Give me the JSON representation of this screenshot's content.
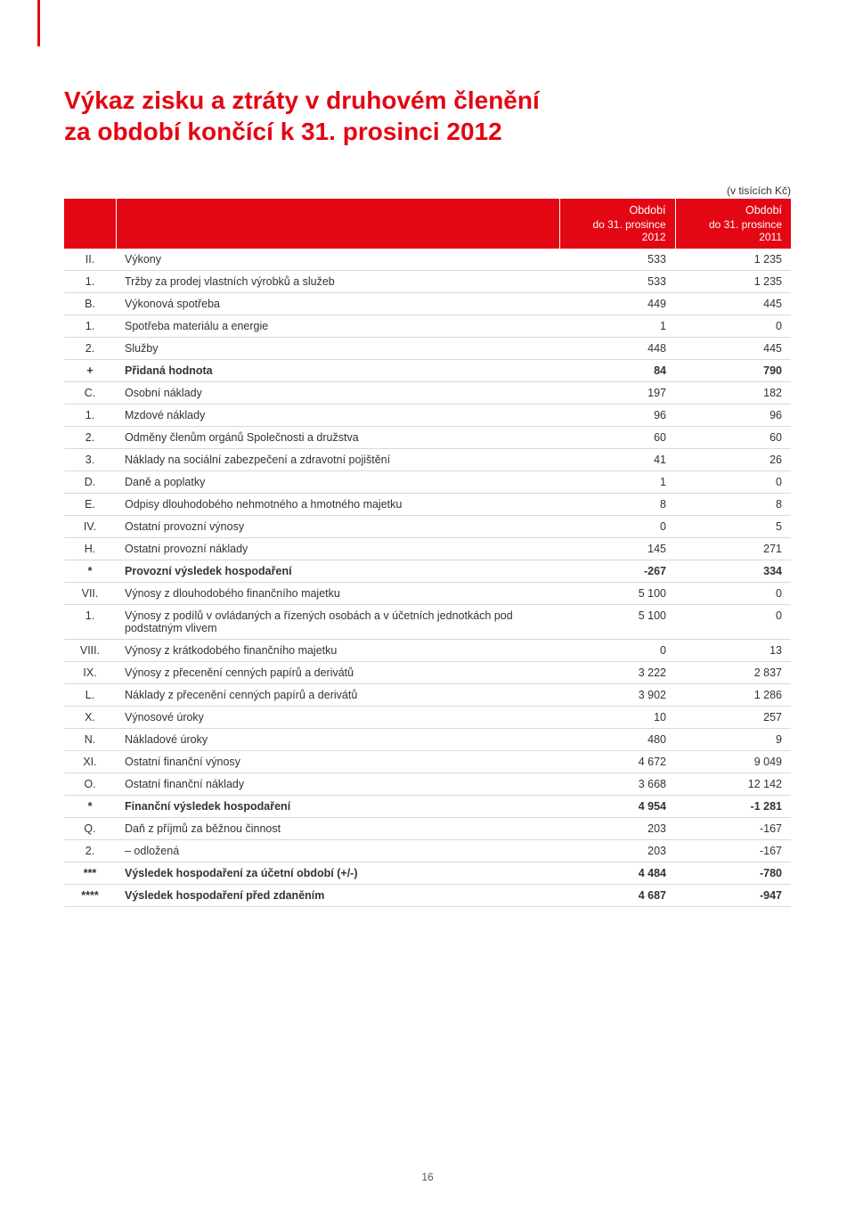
{
  "title_line1": "Výkaz zisku a ztráty v druhovém členění",
  "title_line2": "za období končící k 31. prosinci 2012",
  "unit_note": "(v tisících Kč)",
  "header": {
    "col1_row1": "Období",
    "col2_row1": "Období",
    "col1_row2": "do 31. prosince 2012",
    "col2_row2": "do 31. prosince 2011"
  },
  "rows": [
    {
      "code": "II.",
      "label": "Výkony",
      "v2012": "533",
      "v2011": "1 235",
      "bold": false
    },
    {
      "code": "1.",
      "label": "Tržby za prodej vlastních výrobků a služeb",
      "v2012": "533",
      "v2011": "1 235",
      "bold": false
    },
    {
      "code": "B.",
      "label": "Výkonová spotřeba",
      "v2012": "449",
      "v2011": "445",
      "bold": false
    },
    {
      "code": "1.",
      "label": "Spotřeba materiálu a energie",
      "v2012": "1",
      "v2011": "0",
      "bold": false
    },
    {
      "code": "2.",
      "label": "Služby",
      "v2012": "448",
      "v2011": "445",
      "bold": false
    },
    {
      "code": "+",
      "label": "Přidaná hodnota",
      "v2012": "84",
      "v2011": "790",
      "bold": true
    },
    {
      "code": "C.",
      "label": "Osobní náklady",
      "v2012": "197",
      "v2011": "182",
      "bold": false
    },
    {
      "code": "1.",
      "label": "Mzdové náklady",
      "v2012": "96",
      "v2011": "96",
      "bold": false
    },
    {
      "code": "2.",
      "label": "Odměny členům orgánů Společnosti a družstva",
      "v2012": "60",
      "v2011": "60",
      "bold": false
    },
    {
      "code": "3.",
      "label": "Náklady na sociální zabezpečení a zdravotní pojištění",
      "v2012": "41",
      "v2011": "26",
      "bold": false
    },
    {
      "code": "D.",
      "label": "Daně a poplatky",
      "v2012": "1",
      "v2011": "0",
      "bold": false
    },
    {
      "code": "E.",
      "label": "Odpisy dlouhodobého nehmotného a hmotného majetku",
      "v2012": "8",
      "v2011": "8",
      "bold": false
    },
    {
      "code": "IV.",
      "label": "Ostatní provozní výnosy",
      "v2012": "0",
      "v2011": "5",
      "bold": false
    },
    {
      "code": "H.",
      "label": "Ostatní provozní náklady",
      "v2012": "145",
      "v2011": "271",
      "bold": false
    },
    {
      "code": "*",
      "label": "Provozní výsledek hospodaření",
      "v2012": "-267",
      "v2011": "334",
      "bold": true
    },
    {
      "code": "VII.",
      "label": "Výnosy z dlouhodobého finančního majetku",
      "v2012": "5 100",
      "v2011": "0",
      "bold": false
    },
    {
      "code": "1.",
      "label": "Výnosy z podílů v ovládaných a řízených osobách a v účetních jednotkách pod podstatným vlivem",
      "v2012": "5 100",
      "v2011": "0",
      "bold": false
    },
    {
      "code": "VIII.",
      "label": "Výnosy z krátkodobého finančního majetku",
      "v2012": "0",
      "v2011": "13",
      "bold": false
    },
    {
      "code": "IX.",
      "label": "Výnosy z přecenění cenných papírů a derivátů",
      "v2012": "3 222",
      "v2011": "2 837",
      "bold": false
    },
    {
      "code": "L.",
      "label": "Náklady z přecenění cenných papírů a derivátů",
      "v2012": "3 902",
      "v2011": "1 286",
      "bold": false
    },
    {
      "code": "X.",
      "label": "Výnosové úroky",
      "v2012": "10",
      "v2011": "257",
      "bold": false
    },
    {
      "code": "N.",
      "label": "Nákladové úroky",
      "v2012": "480",
      "v2011": "9",
      "bold": false
    },
    {
      "code": "XI.",
      "label": "Ostatní finanční výnosy",
      "v2012": "4 672",
      "v2011": "9 049",
      "bold": false
    },
    {
      "code": "O.",
      "label": "Ostatní finanční náklady",
      "v2012": "3 668",
      "v2011": "12 142",
      "bold": false
    },
    {
      "code": "*",
      "label": "Finanční výsledek hospodaření",
      "v2012": "4 954",
      "v2011": "-1 281",
      "bold": true
    },
    {
      "code": "Q.",
      "label": "Daň z příjmů za běžnou činnost",
      "v2012": "203",
      "v2011": "-167",
      "bold": false
    },
    {
      "code": "2.",
      "label": "– odložená",
      "v2012": "203",
      "v2011": "-167",
      "bold": false
    },
    {
      "code": "***",
      "label": "Výsledek hospodaření za účetní období (+/-)",
      "v2012": "4 484",
      "v2011": "-780",
      "bold": true
    },
    {
      "code": "****",
      "label": "Výsledek hospodaření před zdaněním",
      "v2012": "4 687",
      "v2011": "-947",
      "bold": true
    }
  ],
  "page_number": "16",
  "colors": {
    "accent": "#e30613",
    "border": "#d9d9d9",
    "text": "#333333"
  }
}
